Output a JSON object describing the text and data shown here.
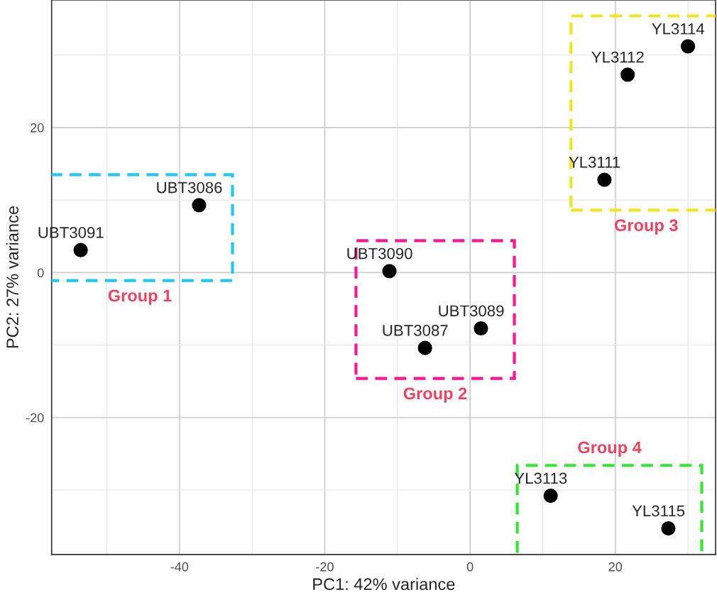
{
  "chart_data": {
    "type": "scatter",
    "xlabel": "PC1: 42% variance",
    "ylabel": "PC2: 27% variance",
    "xlim": [
      -57.6,
      33.8
    ],
    "ylim": [
      -38.9,
      37.6
    ],
    "xticks": [
      -40,
      -20,
      0,
      20
    ],
    "yticks": [
      -20,
      0,
      20
    ],
    "grid": true,
    "legend": false,
    "marker": "circle",
    "series": [
      {
        "name": "Group 1",
        "color": "#000000",
        "x": [
          -53.6,
          -37.3
        ],
        "values": [
          3.1,
          9.3
        ]
      },
      {
        "name": "Group 2",
        "color": "#000000",
        "x": [
          -11.1,
          -6.2,
          1.5
        ],
        "values": [
          0.2,
          -10.4,
          -7.7
        ]
      },
      {
        "name": "Group 3",
        "color": "#000000",
        "x": [
          18.5,
          21.7,
          30.0
        ],
        "values": [
          12.8,
          27.3,
          31.2
        ]
      },
      {
        "name": "Group 4",
        "color": "#000000",
        "x": [
          11.1,
          27.3
        ],
        "values": [
          -30.8,
          -35.3
        ]
      }
    ],
    "annotations": [
      {
        "text": "UBT3091",
        "x": -53.6,
        "y": 3.1
      },
      {
        "text": "UBT3086",
        "x": -37.3,
        "y": 9.3
      },
      {
        "text": "UBT3090",
        "x": -11.1,
        "y": 0.2
      },
      {
        "text": "UBT3087",
        "x": -6.2,
        "y": -10.4
      },
      {
        "text": "UBT3089",
        "x": 1.5,
        "y": -7.7
      },
      {
        "text": "YL3111",
        "x": 18.5,
        "y": 12.8
      },
      {
        "text": "YL3112",
        "x": 21.7,
        "y": 27.3
      },
      {
        "text": "YL3114",
        "x": 30.0,
        "y": 31.2
      },
      {
        "text": "YL3113",
        "x": 11.1,
        "y": -30.8
      },
      {
        "text": "YL3115",
        "x": 27.3,
        "y": -35.3
      }
    ]
  }
}
